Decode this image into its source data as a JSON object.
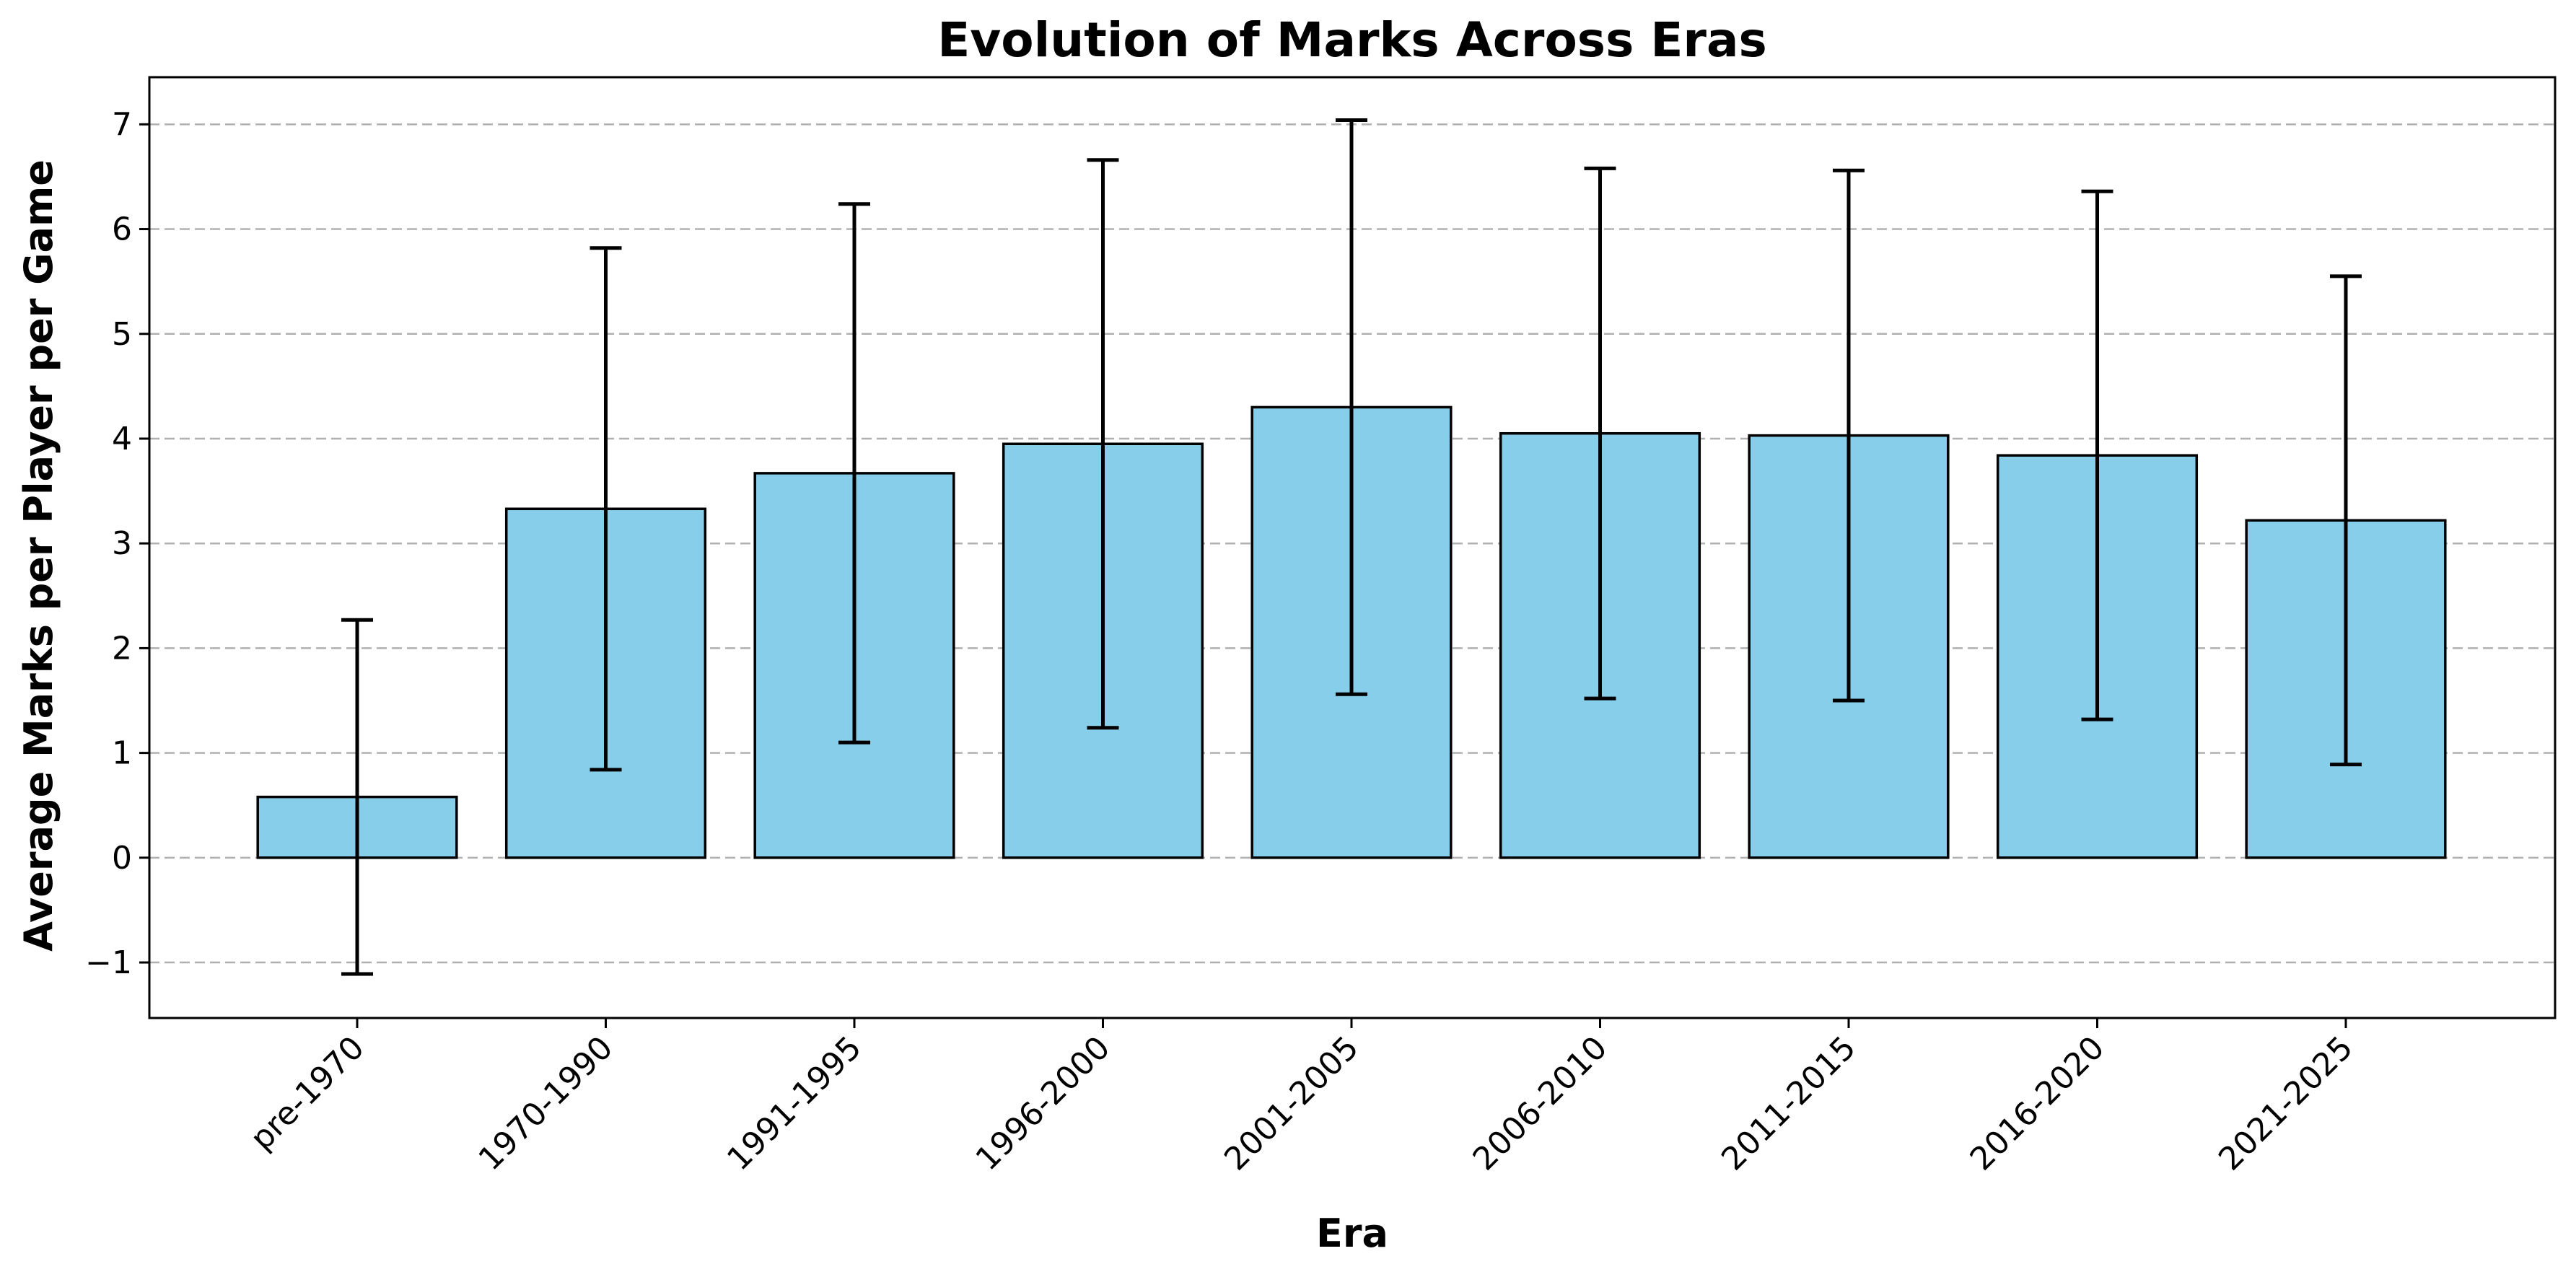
{
  "chart_data": {
    "type": "bar",
    "title": "Evolution of Marks Across Eras",
    "xlabel": "Era",
    "ylabel": "Average Marks per Player per Game",
    "categories": [
      "pre-1970",
      "1970-1990",
      "1991-1995",
      "1996-2000",
      "2001-2005",
      "2006-2010",
      "2011-2015",
      "2016-2020",
      "2021-2025"
    ],
    "values": [
      0.58,
      3.33,
      3.67,
      3.95,
      4.3,
      4.05,
      4.03,
      3.84,
      3.22
    ],
    "errors": [
      1.69,
      2.49,
      2.57,
      2.71,
      2.74,
      2.53,
      2.53,
      2.52,
      2.33
    ],
    "ylim": [
      -1.53,
      7.45
    ],
    "yticks": [
      -1,
      0,
      1,
      2,
      3,
      4,
      5,
      6,
      7
    ],
    "ytick_labels": [
      "−1",
      "0",
      "1",
      "2",
      "3",
      "4",
      "5",
      "6",
      "7"
    ],
    "grid": "y, dashed",
    "bar_color": "#87CEEB",
    "edge_color": "#000000"
  }
}
